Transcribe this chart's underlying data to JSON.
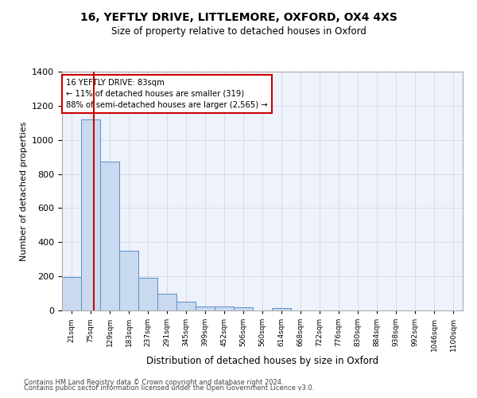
{
  "title_line1": "16, YEFTLY DRIVE, LITTLEMORE, OXFORD, OX4 4XS",
  "title_line2": "Size of property relative to detached houses in Oxford",
  "xlabel": "Distribution of detached houses by size in Oxford",
  "ylabel": "Number of detached properties",
  "bar_labels": [
    "21sqm",
    "75sqm",
    "129sqm",
    "183sqm",
    "237sqm",
    "291sqm",
    "345sqm",
    "399sqm",
    "452sqm",
    "506sqm",
    "560sqm",
    "614sqm",
    "668sqm",
    "722sqm",
    "776sqm",
    "830sqm",
    "884sqm",
    "938sqm",
    "992sqm",
    "1046sqm",
    "1100sqm"
  ],
  "bar_heights": [
    195,
    1120,
    875,
    350,
    192,
    100,
    52,
    25,
    22,
    18,
    0,
    14,
    0,
    0,
    0,
    0,
    0,
    0,
    0,
    0,
    0
  ],
  "bar_color": "#c9d9f0",
  "bar_edge_color": "#5b8fc9",
  "annotation_text": "16 YEFTLY DRIVE: 83sqm\n← 11% of detached houses are smaller (319)\n88% of semi-detached houses are larger (2,565) →",
  "vline_color": "#cc0000",
  "annotation_box_color": "#cc0000",
  "ylim": [
    0,
    1400
  ],
  "yticks": [
    0,
    200,
    400,
    600,
    800,
    1000,
    1200,
    1400
  ],
  "grid_color": "#d0d8e8",
  "bg_color": "#eef2fa",
  "footer_line1": "Contains HM Land Registry data © Crown copyright and database right 2024.",
  "footer_line2": "Contains public sector information licensed under the Open Government Licence v3.0."
}
